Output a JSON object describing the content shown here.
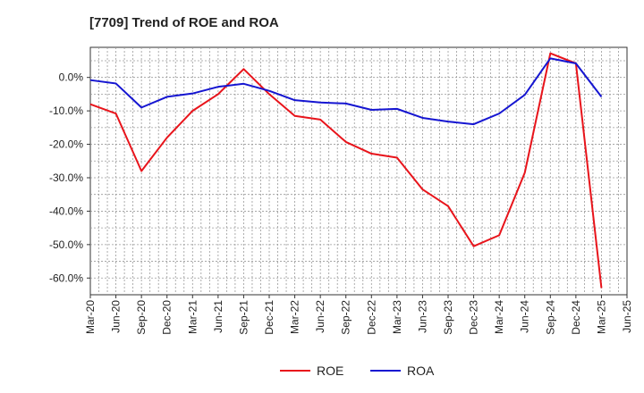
{
  "chart_data": {
    "type": "line",
    "title": "[7709]  Trend of ROE and ROA",
    "xlabel": "",
    "ylabel": "",
    "x": [
      "Mar-20",
      "Jun-20",
      "Sep-20",
      "Dec-20",
      "Mar-21",
      "Jun-21",
      "Sep-21",
      "Dec-21",
      "Mar-22",
      "Jun-22",
      "Sep-22",
      "Dec-22",
      "Mar-23",
      "Jun-23",
      "Sep-23",
      "Dec-23",
      "Mar-24",
      "Jun-24",
      "Sep-24",
      "Dec-24",
      "Mar-25",
      "Jun-25"
    ],
    "ylim": [
      -65,
      9
    ],
    "yticks": [
      0,
      -10,
      -20,
      -30,
      -40,
      -50,
      -60
    ],
    "ytick_labels": [
      "0.0%",
      "-10.0%",
      "-20.0%",
      "-30.0%",
      "-40.0%",
      "-50.0%",
      "-60.0%"
    ],
    "grid": true,
    "legend_position": "bottom-center",
    "series": [
      {
        "name": "ROE",
        "color": "#e8141b",
        "values": [
          -8.0,
          -10.8,
          -28.0,
          -18.0,
          -10.0,
          -5.0,
          2.5,
          -5.0,
          -11.5,
          -12.6,
          -19.3,
          -22.8,
          -24.0,
          -33.5,
          -38.5,
          -50.5,
          -47.2,
          -28.5,
          7.2,
          4.2,
          -63.0,
          null
        ]
      },
      {
        "name": "ROA",
        "color": "#1515d1",
        "values": [
          -0.8,
          -1.8,
          -9.0,
          -5.8,
          -4.8,
          -2.8,
          -1.9,
          -4.0,
          -6.8,
          -7.5,
          -7.8,
          -9.7,
          -9.4,
          -12.1,
          -13.2,
          -14.0,
          -10.8,
          -5.2,
          5.7,
          4.2,
          -5.8,
          null
        ]
      }
    ]
  }
}
